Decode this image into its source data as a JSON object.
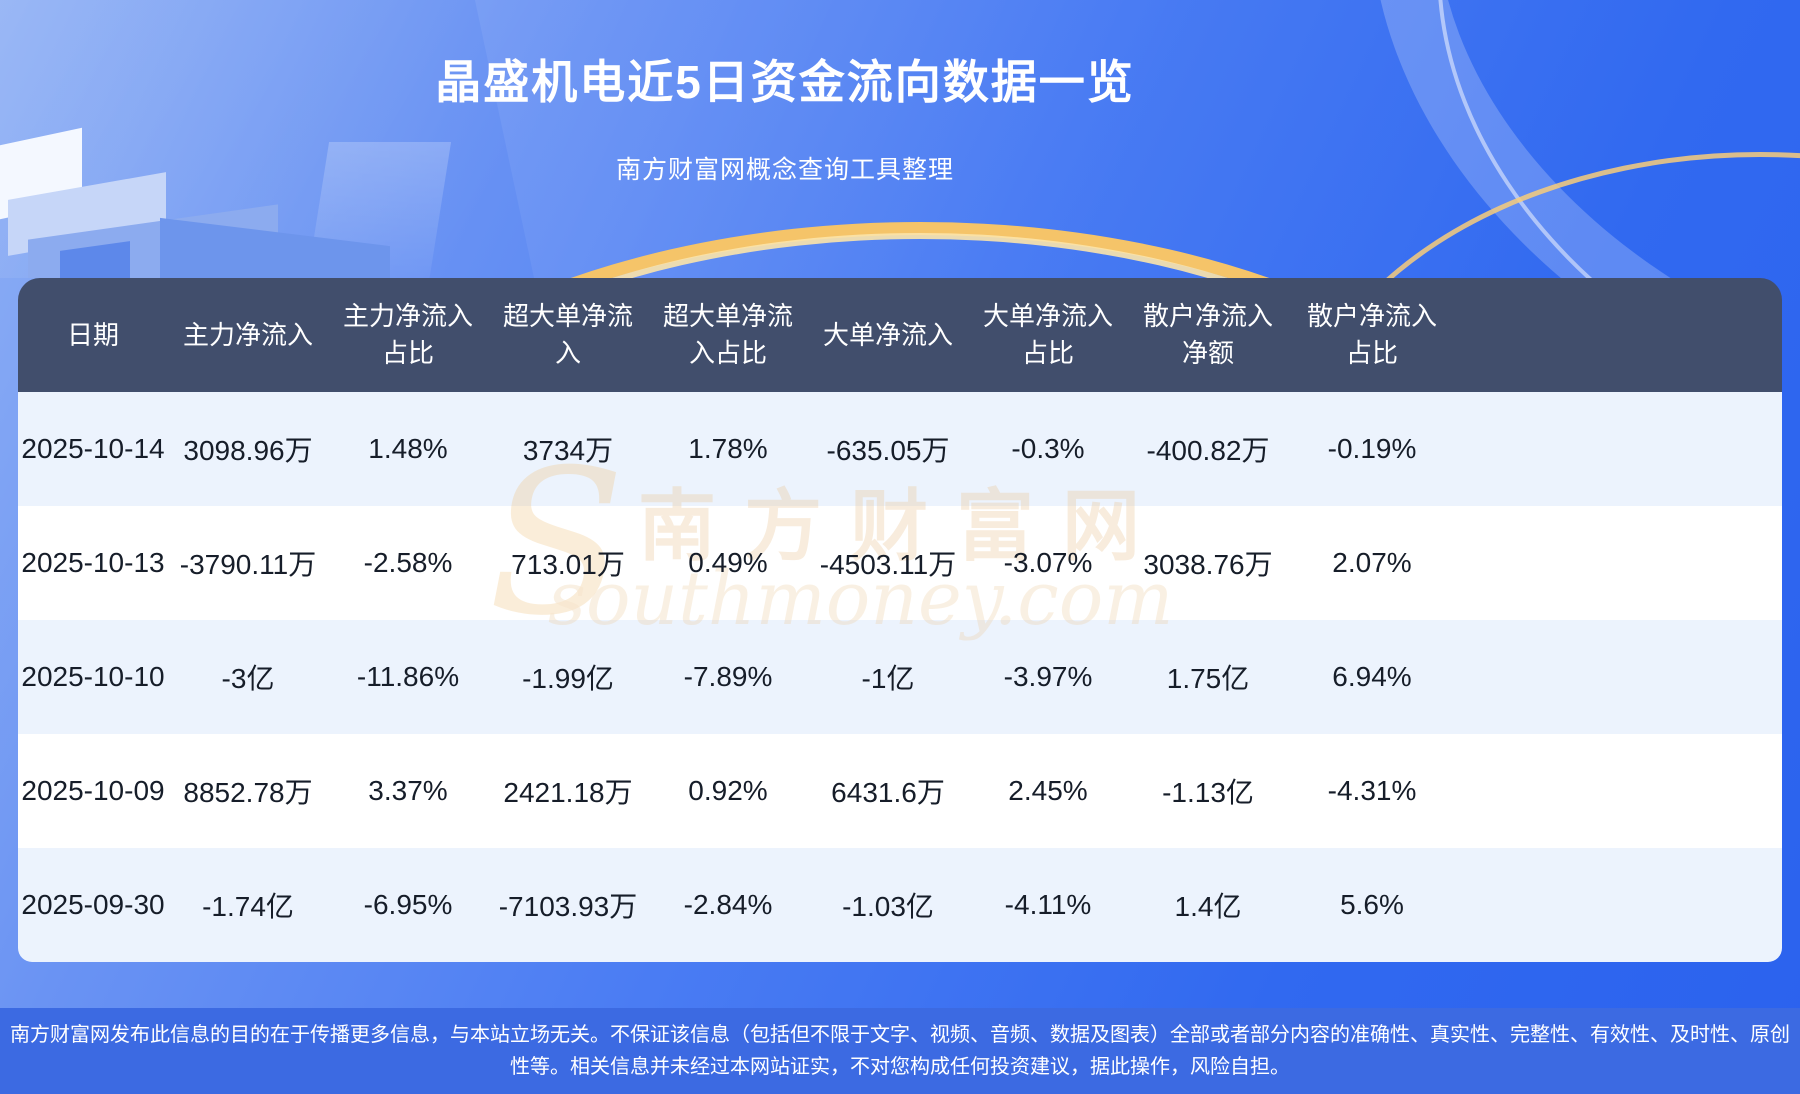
{
  "page": {
    "title": "晶盛机电近5日资金流向数据一览",
    "subtitle": "南方财富网概念查询工具整理"
  },
  "watermark": {
    "initial": "S",
    "cn": "南方财富网",
    "en": "southmoney.com"
  },
  "table": {
    "header_labels": [
      "日期",
      "主力净流入",
      "主力净流入\n占比",
      "超大单净流\n入",
      "超大单净流\n入占比",
      "大单净流入",
      "大单净流入\n占比",
      "散户净流入\n净额",
      "散户净流入\n占比"
    ]
  },
  "chart_data": {
    "type": "table",
    "title": "晶盛机电近5日资金流向数据一览",
    "subtitle": "南方财富网概念查询工具整理",
    "columns": [
      "日期",
      "主力净流入",
      "主力净流入占比",
      "超大单净流入",
      "超大单净流入占比",
      "大单净流入",
      "大单净流入占比",
      "散户净流入净额",
      "散户净流入占比"
    ],
    "rows": [
      [
        "2025-10-14",
        "3098.96万",
        "1.48%",
        "3734万",
        "1.78%",
        "-635.05万",
        "-0.3%",
        "-400.82万",
        "-0.19%"
      ],
      [
        "2025-10-13",
        "-3790.11万",
        "-2.58%",
        "713.01万",
        "0.49%",
        "-4503.11万",
        "-3.07%",
        "3038.76万",
        "2.07%"
      ],
      [
        "2025-10-10",
        "-3亿",
        "-11.86%",
        "-1.99亿",
        "-7.89%",
        "-1亿",
        "-3.97%",
        "1.75亿",
        "6.94%"
      ],
      [
        "2025-10-09",
        "8852.78万",
        "3.37%",
        "2421.18万",
        "0.92%",
        "6431.6万",
        "2.45%",
        "-1.13亿",
        "-4.31%"
      ],
      [
        "2025-09-30",
        "-1.74亿",
        "-6.95%",
        "-7103.93万",
        "-2.84%",
        "-1.03亿",
        "-4.11%",
        "1.4亿",
        "5.6%"
      ]
    ]
  },
  "footer": {
    "disclaimer": "南方财富网发布此信息的目的在于传播更多信息，与本站立场无关。不保证该信息（包括但不限于文字、视频、音频、数据及图表）全部或者部分内容的准确性、真实性、完整性、有效性、及时性、原创性等。相关信息并未经过本网站证实，不对您构成任何投资建议，据此操作，风险自担。"
  },
  "colors": {
    "page_gradient_start": "#8fb0f4",
    "page_gradient_end": "#2b62ee",
    "table_header_bg": "#414e6c",
    "row_alt_bg": "#ecf3fd",
    "row_bg": "#ffffff",
    "footer_bg": "#3c6ae2",
    "gold_arc": "#f5c469",
    "watermark_tan": "#e9c798"
  }
}
